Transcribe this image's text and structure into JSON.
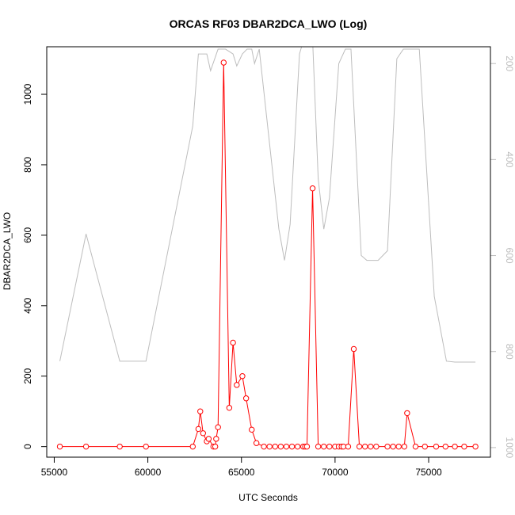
{
  "chart_data": {
    "type": "line",
    "title": "ORCAS RF03 DBAR2DCA_LWO (Log)",
    "xlabel": "UTC Seconds",
    "ylabel": "DBAR2DCA_LWO",
    "xlim": [
      54600,
      78300
    ],
    "ylim": [
      -30,
      1135
    ],
    "y2lim": [
      1020,
      165
    ],
    "x_ticks": [
      55000,
      60000,
      65000,
      70000,
      75000
    ],
    "y_ticks": [
      0,
      200,
      400,
      600,
      800,
      1000
    ],
    "y2_ticks": [
      200,
      400,
      600,
      800,
      1000
    ],
    "series": [
      {
        "color": "#ff0000",
        "axis": "left",
        "markers": "open-circle",
        "x": [
          55300,
          56700,
          58500,
          59900,
          62400,
          62700,
          62800,
          62950,
          63150,
          63250,
          63500,
          63600,
          63650,
          63750,
          64050,
          64350,
          64550,
          64750,
          65050,
          65250,
          65550,
          65800,
          66200,
          66500,
          66800,
          67100,
          67400,
          67700,
          68000,
          68300,
          68400,
          68500,
          68800,
          69100,
          69400,
          69700,
          70000,
          70200,
          70350,
          70450,
          70700,
          71000,
          71300,
          71600,
          71900,
          72200,
          72800,
          73100,
          73400,
          73700,
          73850,
          74300,
          74800,
          75400,
          75900,
          76400,
          76900,
          77500
        ],
        "y": [
          0,
          0,
          0,
          0,
          0,
          50,
          100,
          38,
          15,
          22,
          0,
          0,
          22,
          55,
          1090,
          110,
          295,
          175,
          200,
          137,
          48,
          10,
          0,
          0,
          0,
          0,
          0,
          0,
          0,
          0,
          0,
          0,
          733,
          0,
          0,
          0,
          0,
          0,
          0,
          0,
          0,
          277,
          0,
          0,
          0,
          0,
          0,
          0,
          0,
          0,
          95,
          0,
          0,
          0,
          0,
          0,
          0,
          0
        ]
      },
      {
        "color": "#bdbdbd",
        "axis": "right",
        "markers": "none",
        "x": [
          55300,
          56700,
          58500,
          59900,
          62400,
          62700,
          63150,
          63350,
          63750,
          64150,
          64550,
          64750,
          65050,
          65300,
          65550,
          65700,
          65950,
          67000,
          67300,
          67600,
          68100,
          68400,
          68800,
          69100,
          69400,
          69700,
          70200,
          70550,
          70850,
          71400,
          71700,
          72300,
          72800,
          73300,
          73650,
          74100,
          74500,
          75300,
          75950,
          76400,
          77500
        ],
        "y": [
          820,
          555,
          820,
          820,
          330,
          180,
          180,
          215,
          170,
          170,
          180,
          205,
          180,
          170,
          170,
          200,
          170,
          545,
          610,
          535,
          180,
          140,
          150,
          440,
          545,
          480,
          200,
          170,
          170,
          600,
          610,
          610,
          590,
          190,
          170,
          170,
          170,
          685,
          820,
          822,
          822
        ]
      }
    ]
  }
}
